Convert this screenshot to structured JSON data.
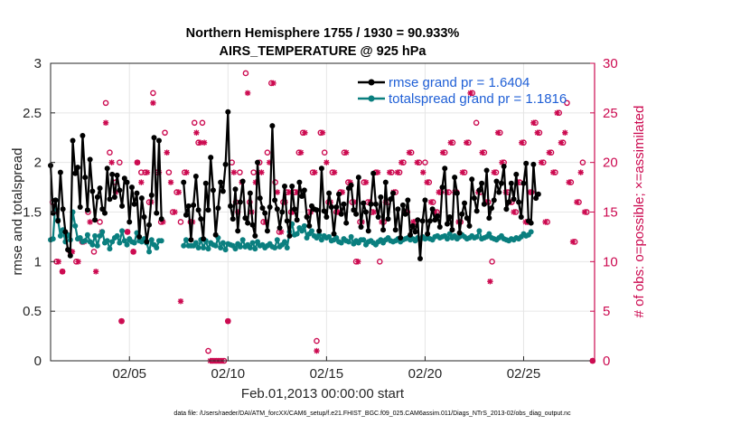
{
  "chart_data": {
    "type": "line",
    "title": "Northern Hemisphere 1755 / 1930 = 90.933%",
    "subtitle": "AIRS_TEMPERATURE @ 925 hPa",
    "xlabel": "Feb.01,2013 00:00:00 start",
    "ylabel": "rmse and totalspread",
    "y2label": "# of obs: o=possible; ×=assimilated",
    "footnote": "data file: /Users/raeder/DAI/ATM_forcXX/CAM6_setup/f.e21.FHIST_BGC.f09_025.CAM6assim.011/Diags_NTrS_2013-02/obs_diag_output.nc",
    "xlim": [
      1,
      28.6
    ],
    "ylim": [
      0,
      3
    ],
    "y2lim": [
      0,
      30
    ],
    "x_ticks": [
      {
        "value": 5,
        "label": "02/05"
      },
      {
        "value": 10,
        "label": "02/10"
      },
      {
        "value": 15,
        "label": "02/15"
      },
      {
        "value": 20,
        "label": "02/20"
      },
      {
        "value": 25,
        "label": "02/25"
      }
    ],
    "y_ticks": [
      "0",
      "0.5",
      "1",
      "1.5",
      "2",
      "2.5",
      "3"
    ],
    "y2_ticks": [
      "0",
      "5",
      "10",
      "15",
      "20",
      "25",
      "30"
    ],
    "legend": [
      {
        "label": "rmse grand pr = 1.6404",
        "color": "#000000"
      },
      {
        "label": "totalspread grand pr = 1.1816",
        "color": "#0a7f7f"
      }
    ],
    "series": [
      {
        "name": "rmse",
        "color": "#000000",
        "values": [
          1.97,
          1.49,
          1.62,
          1.41,
          1.9,
          1.53,
          1.3,
          1.12,
          1.06,
          2.22,
          1.89,
          1.95,
          1.55,
          2.27,
          1.85,
          1.52,
          2.03,
          1.71,
          1.42,
          1.65,
          1.74,
          1.53,
          1.49,
          1.94,
          1.63,
          1.88,
          1.65,
          1.87,
          1.72,
          1.56,
          1.84,
          1.8,
          1.4,
          1.75,
          1.58,
          1.69,
          1.25,
          1.64,
          1.45,
          1.2,
          1.37,
          1.67,
          2.25,
          1.49,
          2.22,
          1.43,
          null,
          null,
          null,
          null,
          null,
          null,
          null,
          null,
          1.8,
          1.47,
          1.56,
          1.22,
          1.57,
          1.86,
          1.52,
          1.43,
          1.23,
          1.79,
          1.52,
          2.05,
          1.72,
          1.27,
          1.54,
          1.8,
          1.71,
          1.98,
          2.51,
          1.56,
          1.43,
          1.73,
          1.31,
          1.6,
          1.81,
          1.44,
          1.39,
          1.69,
          1.37,
          1.26,
          2.0,
          1.64,
          1.54,
          1.49,
          1.31,
          1.55,
          2.37,
          1.62,
          1.53,
          1.34,
          1.5,
          1.76,
          1.41,
          1.26,
          1.76,
          1.53,
          1.42,
          1.8,
          1.66,
          1.72,
          1.45,
          1.36,
          1.56,
          1.53,
          1.52,
          1.31,
          1.94,
          1.51,
          1.45,
          1.69,
          1.55,
          1.28,
          1.55,
          1.68,
          1.48,
          1.58,
          1.39,
          1.74,
          1.77,
          1.52,
          1.48,
          1.85,
          1.35,
          1.59,
          1.5,
          1.31,
          1.58,
          1.89,
          1.58,
          1.45,
          1.65,
          1.32,
          1.8,
          1.43,
          1.63,
          1.69,
          1.32,
          1.53,
          1.24,
          1.57,
          1.48,
          1.62,
          1.27,
          1.36,
          1.3,
          1.42,
          1.03,
          1.41,
          1.62,
          1.28,
          1.41,
          1.53,
          1.42,
          1.46,
          1.35,
          1.75,
          1.94,
          1.38,
          1.45,
          1.32,
          1.85,
          1.69,
          1.29,
          1.48,
          1.59,
          1.44,
          1.36,
          1.83,
          1.64,
          1.51,
          1.72,
          1.79,
          1.58,
          1.92,
          1.44,
          1.54,
          1.62,
          1.81,
          1.7,
          1.79,
          1.96,
          1.53,
          1.6,
          1.79,
          1.63,
          1.88,
          1.6,
          1.45,
          1.79,
          1.99,
          1.41,
          1.39,
          1.98,
          1.64,
          1.68
        ]
      },
      {
        "name": "totalspread",
        "color": "#0a7f7f",
        "values": [
          1.22,
          1.23,
          1.62,
          1.42,
          1.26,
          1.32,
          1.2,
          1.27,
          1.22,
          1.5,
          1.36,
          1.23,
          1.24,
          1.2,
          1.21,
          1.27,
          1.2,
          1.17,
          1.26,
          1.16,
          1.26,
          1.3,
          1.19,
          1.21,
          1.13,
          1.2,
          1.24,
          1.26,
          1.19,
          1.31,
          1.21,
          1.17,
          1.23,
          1.2,
          1.19,
          1.29,
          1.21,
          1.2,
          1.23,
          1.19,
          1.1,
          1.22,
          1.17,
          1.14,
          1.21,
          1.21,
          null,
          null,
          null,
          null,
          null,
          null,
          null,
          null,
          1.16,
          1.22,
          1.16,
          1.16,
          1.16,
          1.19,
          1.14,
          1.22,
          1.14,
          1.21,
          1.13,
          1.19,
          1.17,
          1.16,
          1.24,
          1.14,
          1.19,
          1.12,
          1.18,
          1.17,
          1.16,
          1.13,
          1.18,
          1.15,
          1.22,
          1.15,
          1.17,
          1.14,
          1.19,
          1.13,
          1.2,
          1.16,
          1.17,
          1.14,
          1.16,
          1.18,
          1.15,
          1.14,
          1.22,
          1.15,
          1.17,
          1.2,
          1.14,
          1.3,
          1.38,
          1.27,
          1.28,
          1.34,
          1.31,
          1.36,
          1.24,
          1.28,
          1.31,
          1.26,
          1.24,
          1.27,
          1.22,
          1.26,
          1.24,
          1.25,
          1.21,
          1.22,
          1.24,
          1.2,
          1.19,
          1.23,
          1.21,
          1.2,
          1.25,
          1.18,
          1.21,
          1.19,
          1.22,
          1.22,
          1.17,
          1.2,
          1.21,
          1.19,
          1.17,
          1.2,
          1.22,
          1.19,
          1.22,
          1.24,
          1.21,
          1.2,
          1.21,
          1.23,
          1.2,
          1.22,
          1.23,
          1.24,
          1.22,
          1.23,
          1.21,
          1.24,
          1.22,
          1.25,
          1.23,
          1.24,
          1.23,
          1.22,
          1.25,
          1.26,
          1.24,
          1.25,
          1.26,
          1.23,
          1.28,
          1.24,
          1.26,
          1.23,
          1.25,
          1.27,
          1.25,
          1.23,
          1.24,
          1.26,
          1.24,
          1.25,
          1.31,
          1.23,
          1.24,
          1.25,
          1.28,
          1.24,
          1.23,
          1.22,
          1.24,
          1.26,
          1.23,
          1.22,
          1.21,
          1.23,
          1.22,
          1.24,
          1.23,
          1.25,
          1.28,
          1.26,
          1.27,
          1.3
        ]
      }
    ],
    "obs_possible": [
      [
        1.1,
        16
      ],
      [
        1.3,
        10
      ],
      [
        1.6,
        9
      ],
      [
        2.0,
        11
      ],
      [
        2.3,
        10
      ],
      [
        2.6,
        12
      ],
      [
        2.9,
        15
      ],
      [
        3.2,
        11
      ],
      [
        3.5,
        14
      ],
      [
        3.8,
        26
      ],
      [
        4.0,
        21
      ],
      [
        4.3,
        18
      ],
      [
        4.5,
        20
      ],
      [
        4.6,
        4
      ],
      [
        4.9,
        13
      ],
      [
        5.2,
        11
      ],
      [
        5.4,
        20
      ],
      [
        5.6,
        19
      ],
      [
        5.8,
        19
      ],
      [
        6.0,
        16
      ],
      [
        6.2,
        27
      ],
      [
        6.4,
        19
      ],
      [
        6.6,
        14
      ],
      [
        6.8,
        23
      ],
      [
        7.0,
        19
      ],
      [
        7.2,
        15
      ],
      [
        7.4,
        17
      ],
      [
        7.6,
        14
      ],
      [
        7.8,
        19
      ],
      [
        8.1,
        14
      ],
      [
        8.3,
        24
      ],
      [
        8.5,
        22
      ],
      [
        8.7,
        24
      ],
      [
        9.0,
        1
      ],
      [
        9.2,
        0
      ],
      [
        9.4,
        0
      ],
      [
        9.6,
        0
      ],
      [
        9.8,
        0
      ],
      [
        10.0,
        4
      ],
      [
        10.2,
        20
      ],
      [
        10.4,
        16
      ],
      [
        10.6,
        19
      ],
      [
        10.9,
        29
      ],
      [
        11.1,
        16
      ],
      [
        11.3,
        19
      ],
      [
        11.6,
        20
      ],
      [
        11.8,
        14
      ],
      [
        12.0,
        21
      ],
      [
        12.2,
        28
      ],
      [
        12.4,
        18
      ],
      [
        12.6,
        13
      ],
      [
        12.8,
        16
      ],
      [
        13.0,
        17
      ],
      [
        13.2,
        15
      ],
      [
        13.4,
        17
      ],
      [
        13.6,
        21
      ],
      [
        13.8,
        23
      ],
      [
        14.1,
        15
      ],
      [
        14.3,
        19
      ],
      [
        14.5,
        2
      ],
      [
        14.7,
        23
      ],
      [
        14.9,
        21
      ],
      [
        15.1,
        16
      ],
      [
        15.3,
        19
      ],
      [
        15.5,
        15
      ],
      [
        15.7,
        17
      ],
      [
        15.9,
        21
      ],
      [
        16.1,
        18
      ],
      [
        16.3,
        16
      ],
      [
        16.5,
        10
      ],
      [
        16.7,
        14
      ],
      [
        16.9,
        18
      ],
      [
        17.1,
        16
      ],
      [
        17.3,
        15
      ],
      [
        17.5,
        19
      ],
      [
        17.7,
        10
      ],
      [
        17.9,
        14
      ],
      [
        18.1,
        16
      ],
      [
        18.3,
        19
      ],
      [
        18.5,
        17
      ],
      [
        18.7,
        19
      ],
      [
        18.9,
        20
      ],
      [
        19.1,
        15
      ],
      [
        19.3,
        21
      ],
      [
        19.5,
        14
      ],
      [
        19.7,
        20
      ],
      [
        20.0,
        20
      ],
      [
        20.2,
        18
      ],
      [
        20.4,
        16
      ],
      [
        20.6,
        15
      ],
      [
        20.8,
        17
      ],
      [
        21.0,
        21
      ],
      [
        21.2,
        17
      ],
      [
        21.4,
        22
      ],
      [
        21.6,
        17
      ],
      [
        21.8,
        14
      ],
      [
        22.0,
        19
      ],
      [
        22.2,
        22
      ],
      [
        22.4,
        27
      ],
      [
        22.6,
        24
      ],
      [
        22.8,
        17
      ],
      [
        23.0,
        21
      ],
      [
        23.2,
        16
      ],
      [
        23.4,
        10
      ],
      [
        23.6,
        19
      ],
      [
        23.8,
        23
      ],
      [
        24.0,
        20
      ],
      [
        24.2,
        17
      ],
      [
        24.4,
        16
      ],
      [
        24.6,
        15
      ],
      [
        24.8,
        18
      ],
      [
        25.0,
        22
      ],
      [
        25.2,
        14
      ],
      [
        25.4,
        17
      ],
      [
        25.6,
        24
      ],
      [
        25.8,
        23
      ],
      [
        26.0,
        20
      ],
      [
        26.2,
        14
      ],
      [
        26.4,
        21
      ],
      [
        26.6,
        19
      ],
      [
        26.8,
        25
      ],
      [
        27.0,
        22
      ],
      [
        27.2,
        26
      ],
      [
        27.4,
        18
      ],
      [
        27.6,
        12
      ],
      [
        27.8,
        16
      ],
      [
        28.0,
        20
      ],
      [
        28.2,
        15
      ],
      [
        28.5,
        0
      ]
    ],
    "obs_assimilated": [
      [
        1.2,
        15
      ],
      [
        1.4,
        10
      ],
      [
        1.6,
        9
      ],
      [
        2.1,
        11
      ],
      [
        2.4,
        10
      ],
      [
        2.7,
        12
      ],
      [
        3.0,
        14
      ],
      [
        3.3,
        9
      ],
      [
        3.6,
        13
      ],
      [
        3.8,
        24
      ],
      [
        4.1,
        20
      ],
      [
        4.3,
        17
      ],
      [
        4.6,
        4
      ],
      [
        4.9,
        13
      ],
      [
        5.2,
        11
      ],
      [
        5.4,
        20
      ],
      [
        5.6,
        18
      ],
      [
        5.9,
        19
      ],
      [
        6.1,
        16
      ],
      [
        6.2,
        26
      ],
      [
        6.5,
        19
      ],
      [
        6.7,
        14
      ],
      [
        6.9,
        21
      ],
      [
        7.1,
        18
      ],
      [
        7.3,
        15
      ],
      [
        7.5,
        17
      ],
      [
        7.6,
        6
      ],
      [
        7.9,
        19
      ],
      [
        8.2,
        14
      ],
      [
        8.4,
        23
      ],
      [
        8.6,
        22
      ],
      [
        8.8,
        22
      ],
      [
        9.1,
        0
      ],
      [
        9.3,
        0
      ],
      [
        9.5,
        0
      ],
      [
        9.7,
        0
      ],
      [
        10.0,
        4
      ],
      [
        10.3,
        19
      ],
      [
        10.5,
        15
      ],
      [
        10.7,
        18
      ],
      [
        11.0,
        27
      ],
      [
        11.2,
        15
      ],
      [
        11.4,
        18
      ],
      [
        11.7,
        19
      ],
      [
        11.9,
        14
      ],
      [
        12.1,
        20
      ],
      [
        12.3,
        28
      ],
      [
        12.5,
        17
      ],
      [
        12.7,
        13
      ],
      [
        12.9,
        16
      ],
      [
        13.1,
        17
      ],
      [
        13.3,
        15
      ],
      [
        13.5,
        17
      ],
      [
        13.7,
        21
      ],
      [
        13.9,
        23
      ],
      [
        14.2,
        15
      ],
      [
        14.4,
        19
      ],
      [
        14.5,
        1
      ],
      [
        14.8,
        23
      ],
      [
        15.0,
        20
      ],
      [
        15.2,
        16
      ],
      [
        15.4,
        19
      ],
      [
        15.6,
        15
      ],
      [
        15.8,
        17
      ],
      [
        16.0,
        21
      ],
      [
        16.2,
        18
      ],
      [
        16.4,
        16
      ],
      [
        16.6,
        10
      ],
      [
        16.8,
        14
      ],
      [
        17.0,
        18
      ],
      [
        17.2,
        16
      ],
      [
        17.4,
        15
      ],
      [
        17.6,
        19
      ],
      [
        17.8,
        14
      ],
      [
        18.0,
        16
      ],
      [
        18.2,
        19
      ],
      [
        18.4,
        17
      ],
      [
        18.6,
        19
      ],
      [
        18.8,
        20
      ],
      [
        19.0,
        15
      ],
      [
        19.2,
        21
      ],
      [
        19.4,
        14
      ],
      [
        19.6,
        20
      ],
      [
        19.9,
        19
      ],
      [
        20.1,
        18
      ],
      [
        20.3,
        16
      ],
      [
        20.5,
        15
      ],
      [
        20.7,
        17
      ],
      [
        20.9,
        21
      ],
      [
        21.1,
        17
      ],
      [
        21.3,
        22
      ],
      [
        21.5,
        17
      ],
      [
        21.7,
        14
      ],
      [
        21.9,
        19
      ],
      [
        22.1,
        22
      ],
      [
        22.3,
        27
      ],
      [
        22.7,
        17
      ],
      [
        22.9,
        21
      ],
      [
        23.1,
        16
      ],
      [
        23.3,
        8
      ],
      [
        23.5,
        19
      ],
      [
        23.7,
        23
      ],
      [
        23.9,
        20
      ],
      [
        24.1,
        17
      ],
      [
        24.3,
        16
      ],
      [
        24.5,
        15
      ],
      [
        24.7,
        18
      ],
      [
        24.9,
        22
      ],
      [
        25.1,
        14
      ],
      [
        25.3,
        17
      ],
      [
        25.5,
        24
      ],
      [
        25.7,
        23
      ],
      [
        25.9,
        20
      ],
      [
        26.1,
        14
      ],
      [
        26.3,
        21
      ],
      [
        26.5,
        19
      ],
      [
        26.7,
        25
      ],
      [
        26.9,
        22
      ],
      [
        27.1,
        23
      ],
      [
        27.3,
        18
      ],
      [
        27.5,
        12
      ],
      [
        27.7,
        16
      ],
      [
        27.9,
        19
      ],
      [
        28.1,
        15
      ],
      [
        28.5,
        0
      ]
    ]
  }
}
